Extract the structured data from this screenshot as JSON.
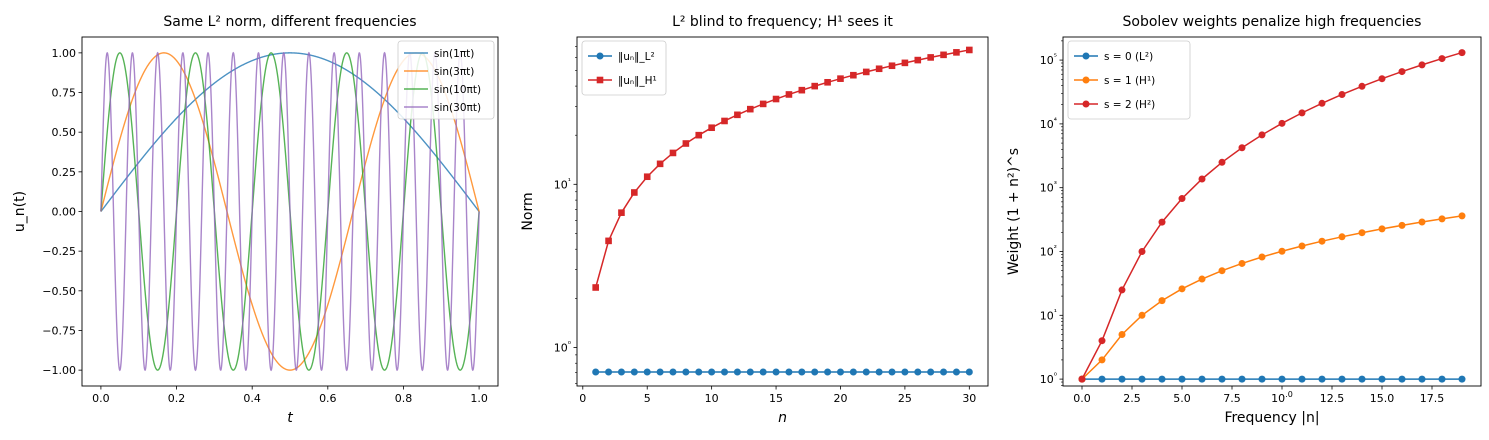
{
  "chart_data": [
    {
      "type": "line",
      "title": "Same L² norm, different frequencies",
      "xlabel": "t",
      "ylabel": "u_n(t)",
      "xlim": [
        -0.05,
        1.05
      ],
      "ylim": [
        -1.1,
        1.1
      ],
      "xticks": [
        "0.0",
        "0.2",
        "0.4",
        "0.6",
        "0.8",
        "1.0"
      ],
      "yticks": [
        "-1.00",
        "-0.75",
        "-0.50",
        "-0.25",
        "0.00",
        "0.25",
        "0.50",
        "0.75",
        "1.00"
      ],
      "legend_position": "top-right",
      "series": [
        {
          "name": "sin(1πt)",
          "frequency": 1,
          "color": "#1f77b4"
        },
        {
          "name": "sin(3πt)",
          "frequency": 3,
          "color": "#ff7f0e"
        },
        {
          "name": "sin(10πt)",
          "frequency": 10,
          "color": "#2ca02c"
        },
        {
          "name": "sin(30πt)",
          "frequency": 30,
          "color": "#9467bd"
        }
      ]
    },
    {
      "type": "line",
      "title": "L² blind to frequency; H¹ sees it",
      "xlabel": "n",
      "ylabel": "Norm",
      "yscale": "log",
      "xlim": [
        -0.45,
        31.45
      ],
      "ylim": [
        0.58,
        80
      ],
      "xticks": [
        "0",
        "5",
        "10",
        "15",
        "20",
        "25",
        "30"
      ],
      "yticks": [
        "10⁰",
        "10¹"
      ],
      "legend_position": "top-left",
      "x": [
        1,
        2,
        3,
        4,
        5,
        6,
        7,
        8,
        9,
        10,
        11,
        12,
        13,
        14,
        15,
        16,
        17,
        18,
        19,
        20,
        21,
        22,
        23,
        24,
        25,
        26,
        27,
        28,
        29,
        30
      ],
      "series": [
        {
          "name": "‖uₙ‖_L²",
          "color": "#1f77b4",
          "marker": "circle",
          "values": [
            0.707,
            0.707,
            0.707,
            0.707,
            0.707,
            0.707,
            0.707,
            0.707,
            0.707,
            0.707,
            0.707,
            0.707,
            0.707,
            0.707,
            0.707,
            0.707,
            0.707,
            0.707,
            0.707,
            0.707,
            0.707,
            0.707,
            0.707,
            0.707,
            0.707,
            0.707,
            0.707,
            0.707,
            0.707,
            0.707
          ]
        },
        {
          "name": "‖uₙ‖_H¹",
          "color": "#d62728",
          "marker": "square",
          "values": [
            2.33,
            4.5,
            6.7,
            8.91,
            11.13,
            13.35,
            15.57,
            17.79,
            20.01,
            22.23,
            24.45,
            26.67,
            28.89,
            31.11,
            33.33,
            35.55,
            37.77,
            39.99,
            42.21,
            44.43,
            46.65,
            48.87,
            51.09,
            53.31,
            55.53,
            57.75,
            59.97,
            62.19,
            64.41,
            66.63
          ]
        }
      ]
    },
    {
      "type": "line",
      "title": "Sobolev weights penalize high frequencies",
      "xlabel": "Frequency |n|",
      "ylabel": "Weight (1 + n²)^s",
      "yscale": "log",
      "xlim": [
        -0.95,
        19.95
      ],
      "ylim": [
        0.78,
        230000
      ],
      "xticks": [
        "0.0",
        "2.5",
        "5.0",
        "7.5",
        "10.0",
        "12.5",
        "15.0",
        "17.5"
      ],
      "yticks": [
        "10⁰",
        "10¹",
        "10²",
        "10³",
        "10⁴",
        "10⁵"
      ],
      "legend_position": "top-left",
      "x": [
        0,
        1,
        2,
        3,
        4,
        5,
        6,
        7,
        8,
        9,
        10,
        11,
        12,
        13,
        14,
        15,
        16,
        17,
        18,
        19
      ],
      "series": [
        {
          "name": "s = 0 (L²)",
          "color": "#1f77b4",
          "marker": "circle",
          "values": [
            1,
            1,
            1,
            1,
            1,
            1,
            1,
            1,
            1,
            1,
            1,
            1,
            1,
            1,
            1,
            1,
            1,
            1,
            1,
            1
          ]
        },
        {
          "name": "s = 1 (H¹)",
          "color": "#ff7f0e",
          "marker": "circle",
          "values": [
            1,
            2,
            5,
            10,
            17,
            26,
            37,
            50,
            65,
            82,
            101,
            122,
            145,
            170,
            197,
            226,
            257,
            290,
            325,
            362
          ]
        },
        {
          "name": "s = 2 (H²)",
          "color": "#d62728",
          "marker": "circle",
          "values": [
            1,
            4,
            25,
            100,
            289,
            676,
            1369,
            2500,
            4225,
            6724,
            10201,
            14884,
            21025,
            28900,
            38809,
            51076,
            66049,
            84100,
            105625,
            131044
          ]
        }
      ]
    }
  ]
}
